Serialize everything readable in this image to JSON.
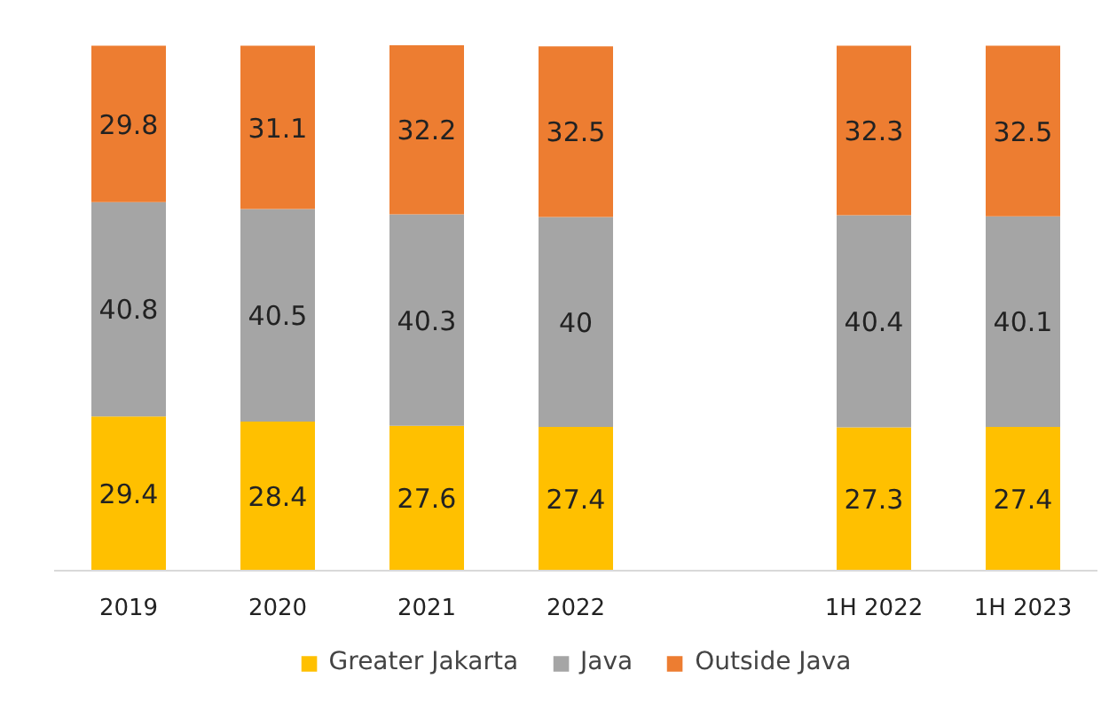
{
  "chart_data": {
    "type": "bar",
    "stacked": true,
    "data_labels": true,
    "legend": "bottom",
    "grid": false,
    "categories": [
      "2019",
      "2020",
      "2021",
      "2022",
      null,
      "1H 2022",
      "1H 2023"
    ],
    "series": [
      {
        "name": "Greater Jakarta",
        "color": "#ffc000",
        "values": [
          29.4,
          28.4,
          27.6,
          27.4,
          null,
          27.3,
          27.4
        ]
      },
      {
        "name": "Java",
        "color": "#a5a5a5",
        "values": [
          40.8,
          40.5,
          40.3,
          40,
          null,
          40.4,
          40.1
        ]
      },
      {
        "name": "Outside Java",
        "color": "#ed7d31",
        "values": [
          29.8,
          31.1,
          32.2,
          32.5,
          null,
          32.3,
          32.5
        ]
      }
    ]
  }
}
